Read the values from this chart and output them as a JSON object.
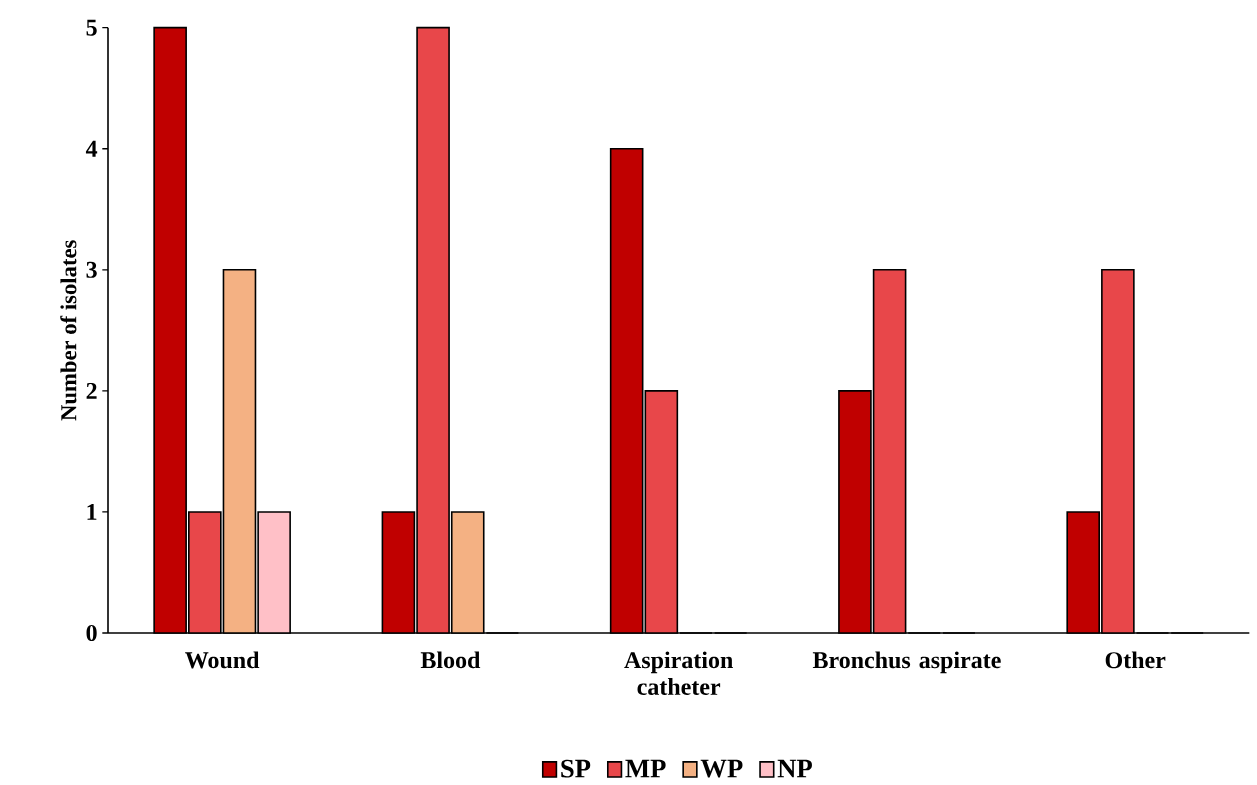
{
  "chart_data": {
    "type": "bar",
    "ylabel": "Number of isolates",
    "categories": [
      "Wound",
      "Blood",
      "Aspiration catheter",
      "Bronchus aspirate",
      "Other"
    ],
    "series": [
      {
        "name": "SP",
        "color": "#c00000",
        "values": [
          5,
          1,
          4,
          2,
          1
        ]
      },
      {
        "name": "MP",
        "color": "#e8474a",
        "values": [
          1,
          5,
          2,
          3,
          3
        ]
      },
      {
        "name": "WP",
        "color": "#f4b183",
        "values": [
          3,
          1,
          0,
          0,
          0
        ]
      },
      {
        "name": "NP",
        "color": "#ffc0c7",
        "values": [
          1,
          0,
          0,
          0,
          0
        ]
      }
    ],
    "ylim": [
      0,
      5
    ],
    "yticks": [
      0,
      1,
      2,
      3,
      4,
      5
    ],
    "legend": "bottom"
  }
}
